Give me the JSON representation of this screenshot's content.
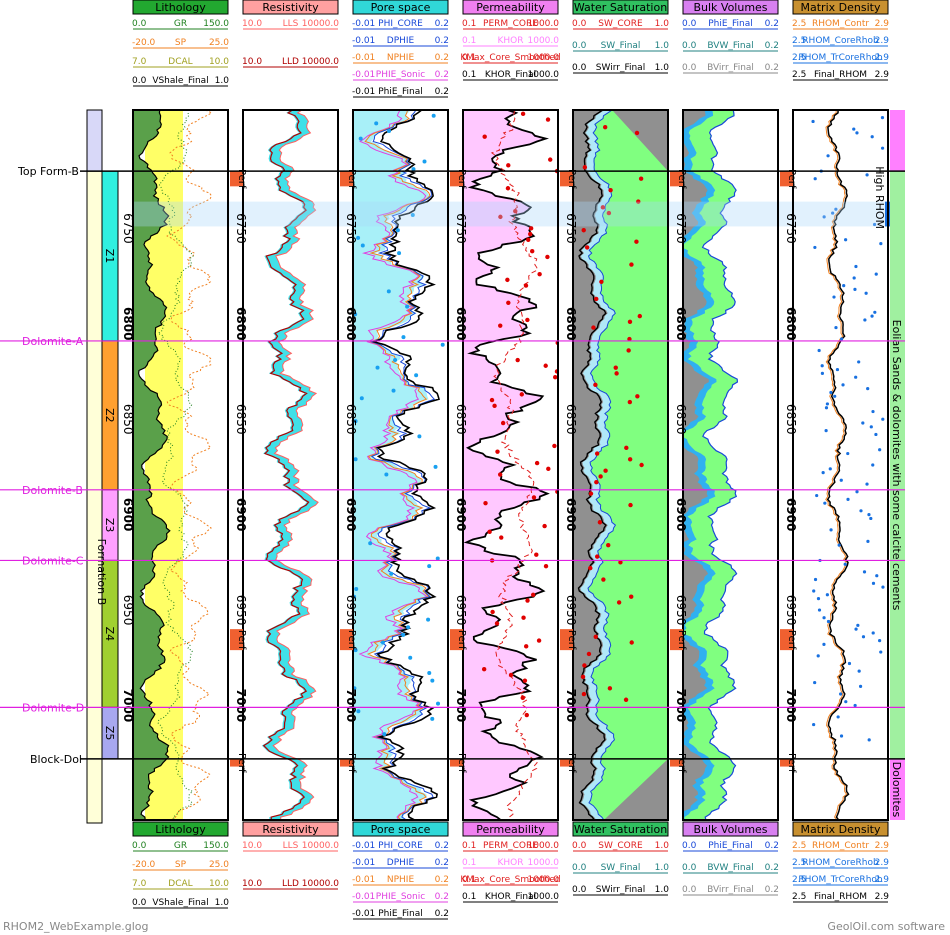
{
  "footer": {
    "file": "RHOM2_WebExample.glog",
    "credit": "GeolOil.com software"
  },
  "colors": {
    "shale": "#5aa04a",
    "sand": "#ffff66",
    "resist": "#40e0e8",
    "pore": "#a8f0f8",
    "perm": "#ffc8ff",
    "oil": "#80ff80",
    "water": "#b0e8f8",
    "gray": "#909090",
    "red": "#e00000",
    "blue": "#1848d8"
  },
  "chart_data": {
    "type": "line",
    "depth": {
      "top": 6688,
      "bottom": 7060,
      "ticks": [
        6750,
        6800,
        6850,
        6900,
        6950,
        7000
      ],
      "bold_ticks": [
        6800,
        6900,
        7000
      ]
    },
    "tops": [
      {
        "name": "Top Form-B",
        "depth": 6720
      },
      {
        "name": "Dolomite-A",
        "depth": 6809
      },
      {
        "name": "Dolomite-B",
        "depth": 6887
      },
      {
        "name": "Dolomite-C",
        "depth": 6924
      },
      {
        "name": "Dolomite-D",
        "depth": 7001
      },
      {
        "name": "Block-Dol",
        "depth": 7028
      }
    ],
    "formation": "Formation B",
    "zones": [
      {
        "name": "Z1",
        "top": 6720,
        "base": 6809
      },
      {
        "name": "Z2",
        "top": 6809,
        "base": 6887
      },
      {
        "name": "Z3",
        "top": 6887,
        "base": 6924
      },
      {
        "name": "Z4",
        "top": 6924,
        "base": 7001
      },
      {
        "name": "Z5",
        "top": 7001,
        "base": 7028
      }
    ],
    "facies": [
      {
        "name": "",
        "top": 6688,
        "base": 6720
      },
      {
        "name": "Eolian Sands & dolomites with some calcite cements",
        "top": 6720,
        "base": 7028
      },
      {
        "name": "Dolomites",
        "top": 7028,
        "base": 7060
      }
    ],
    "perfs": [
      {
        "label": "Perf",
        "top": 6720,
        "base": 6728
      },
      {
        "label": "Perf",
        "top": 6960,
        "base": 6971
      },
      {
        "label": "Perf",
        "top": 7028,
        "base": 7032
      }
    ],
    "annotation": {
      "text": "High RHOM",
      "top": 6736,
      "base": 6749
    },
    "tracks": [
      {
        "title": "Lithology",
        "curves": [
          {
            "name": "GR",
            "min": "0.0",
            "max": "150.0"
          },
          {
            "name": "SP",
            "min": "-20.0",
            "max": "25.0"
          },
          {
            "name": "DCAL",
            "min": "7.0",
            "max": "10.0"
          },
          {
            "name": "VShale_Final",
            "min": "0.0",
            "max": "1.0"
          }
        ]
      },
      {
        "title": "Resistivity",
        "curves": [
          {
            "name": "LLS",
            "min": "10.0",
            "max": "10000.0"
          },
          {
            "name": "LLD",
            "min": "10.0",
            "max": "10000.0"
          }
        ]
      },
      {
        "title": "Pore space",
        "curves": [
          {
            "name": "PHI_CORE",
            "min": "-0.01",
            "max": "0.2"
          },
          {
            "name": "DPHIE",
            "min": "-0.01",
            "max": "0.2"
          },
          {
            "name": "NPHIE",
            "min": "-0.01",
            "max": "0.2"
          },
          {
            "name": "PHIE_Sonic",
            "min": "-0.01",
            "max": "0.2"
          },
          {
            "name": "PhiE_Final",
            "min": "-0.01",
            "max": "0.2"
          }
        ]
      },
      {
        "title": "Permeability",
        "curves": [
          {
            "name": "PERM_CORE",
            "min": "0.1",
            "max": "1000.0"
          },
          {
            "name": "KHOR",
            "min": "0.1",
            "max": "1000.0"
          },
          {
            "name": "KMax_Core_Smoothed",
            "min": "0.1",
            "max": "1000.0"
          },
          {
            "name": "KHOR_Final",
            "min": "0.1",
            "max": "1000.0"
          }
        ]
      },
      {
        "title": "Water Saturation",
        "curves": [
          {
            "name": "SW_CORE",
            "min": "0.0",
            "max": "1.0"
          },
          {
            "name": "SW_Final",
            "min": "0.0",
            "max": "1.0"
          },
          {
            "name": "SWirr_Final",
            "min": "0.0",
            "max": "1.0"
          }
        ]
      },
      {
        "title": "Bulk Volumes",
        "curves": [
          {
            "name": "PhiE_Final",
            "min": "0.0",
            "max": "0.2"
          },
          {
            "name": "BVW_Final",
            "min": "0.0",
            "max": "0.2"
          },
          {
            "name": "BVirr_Final",
            "min": "0.0",
            "max": "0.2"
          }
        ]
      },
      {
        "title": "Matrix Density",
        "curves": [
          {
            "name": "RHOM_Contr",
            "min": "2.5",
            "max": "2.9"
          },
          {
            "name": "RHOM_CoreRhob",
            "min": "2.5",
            "max": "2.9"
          },
          {
            "name": "RHOM_TrCoreRhob",
            "min": "2.5",
            "max": "2.9"
          },
          {
            "name": "Final_RHOM",
            "min": "2.5",
            "max": "2.9"
          }
        ]
      }
    ]
  }
}
